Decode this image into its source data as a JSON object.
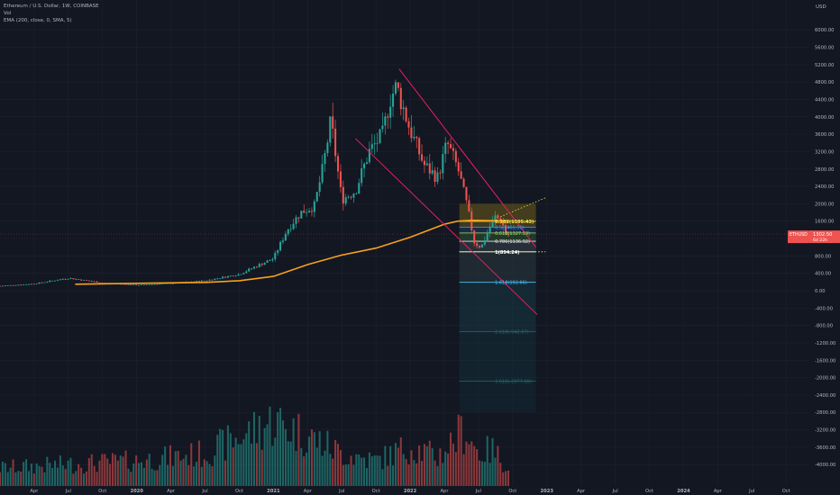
{
  "legend": {
    "title": "Ethereum / U.S. Dollar, 1W, COINBASE",
    "vol": "Vol",
    "ema": "EMA (200, close, 0, SMA, 5)"
  },
  "price_scale": {
    "currency": "USD",
    "ticks": [
      6000,
      5600,
      5200,
      4800,
      4400,
      4000,
      3600,
      3200,
      2800,
      2400,
      2000,
      1600,
      1200,
      800,
      400,
      0,
      -400,
      -800,
      -1200,
      -1600,
      -2000,
      -2400,
      -2800,
      -3200,
      -3600,
      -4000
    ],
    "tick_labels": [
      "6000.00",
      "5600.00",
      "5200.00",
      "4800.00",
      "4400.00",
      "4000.00",
      "3600.00",
      "3200.00",
      "2800.00",
      "2400.00",
      "2000.00",
      "1600.00",
      "1200.00",
      "800.00",
      "400.00",
      "0.00",
      "-400.00",
      "-800.00",
      "-1200.00",
      "-1600.00",
      "-2000.00",
      "-2400.00",
      "-2800.00",
      "-3200.00",
      "-3600.00",
      "-4000.00"
    ],
    "last_price_badge": {
      "symbol": "ETHUSD",
      "price": "1302.50",
      "countdown": "6d 22h"
    }
  },
  "time_axis": {
    "labels": [
      "Apr",
      "Jul",
      "Oct",
      "2020",
      "Apr",
      "Jul",
      "Oct",
      "2021",
      "Apr",
      "Jul",
      "Oct",
      "2022",
      "Apr",
      "Jul",
      "Oct",
      "2023",
      "Apr",
      "Jul",
      "Oct",
      "2024",
      "Apr",
      "Jul",
      "Oct"
    ],
    "label_dates": [
      2019.25,
      2019.5,
      2019.75,
      2020.0,
      2020.25,
      2020.5,
      2020.75,
      2021.0,
      2021.25,
      2021.5,
      2021.75,
      2022.0,
      2022.25,
      2022.5,
      2022.75,
      2023.0,
      2023.25,
      2023.5,
      2023.75,
      2024.0,
      2024.25,
      2024.5,
      2024.75
    ]
  },
  "fib_levels": [
    {
      "ratio": 0.382,
      "label": "0.382(1595.43)",
      "price": 1595.43,
      "color": "#f5e04a"
    },
    {
      "ratio": 0.5,
      "label": "0.5(1461.50)",
      "price": 1461.5,
      "color": "#3aa3ff"
    },
    {
      "ratio": 0.618,
      "label": "0.618(1327.19)",
      "price": 1327.19,
      "color": "#9ee35a"
    },
    {
      "ratio": 0.786,
      "label": "0.786(1136.92)",
      "price": 1136.92,
      "color": "#e8e8e8"
    },
    {
      "ratio": 1,
      "label": "1(894.24)",
      "price": 894.24,
      "color": "#ffffff"
    },
    {
      "ratio": 1.618,
      "label": "1.618(192.66)",
      "price": 192.66,
      "color": "#4fc3f7"
    },
    {
      "ratio": 2.618,
      "label": "2.618(-942.07)",
      "price": -942.07,
      "color": "#1f6f6a"
    },
    {
      "ratio": 3.618,
      "label": "3.618(-2077.80)",
      "price": -2077.8,
      "color": "#1f6f6a"
    }
  ],
  "colors": {
    "background": "#131722",
    "up": "#26a69a",
    "down": "#ef5350",
    "ema": "#f7a21b",
    "channel": "#e91e63",
    "grid": "#1e2230",
    "axis_text": "#b2b5be",
    "badge": "#ef5350"
  },
  "chart_data": {
    "type": "candlestick",
    "symbol": "ETHUSD",
    "interval": "1W",
    "exchange": "COINBASE",
    "ylim": [
      -4200,
      6400
    ],
    "xlim": [
      2019.0,
      2024.92
    ],
    "grid": true,
    "series": [
      {
        "name": "Price (approx. close)",
        "x": [
          2019.0,
          2019.25,
          2019.5,
          2019.75,
          2020.0,
          2020.25,
          2020.5,
          2020.75,
          2020.9,
          2021.0,
          2021.1,
          2021.2,
          2021.3,
          2021.36,
          2021.42,
          2021.5,
          2021.6,
          2021.7,
          2021.8,
          2021.85,
          2021.9,
          2022.0,
          2022.1,
          2022.2,
          2022.27,
          2022.35,
          2022.42,
          2022.47,
          2022.52,
          2022.56,
          2022.62,
          2022.67,
          2022.7
        ],
        "y": [
          110,
          160,
          290,
          180,
          130,
          170,
          230,
          380,
          600,
          740,
          1400,
          1800,
          1950,
          2800,
          3900,
          2100,
          2300,
          3200,
          3600,
          4400,
          4700,
          3700,
          2900,
          2600,
          3400,
          2800,
          1900,
          1100,
          1000,
          1300,
          1700,
          1600,
          1300
        ]
      },
      {
        "name": "EMA (200, close, 0, SMA, 5)",
        "x": [
          2019.55,
          2020.0,
          2020.5,
          2020.75,
          2021.0,
          2021.25,
          2021.5,
          2021.75,
          2022.0,
          2022.25,
          2022.35,
          2022.45,
          2022.6,
          2022.72
        ],
        "y": [
          150,
          170,
          190,
          230,
          330,
          600,
          820,
          980,
          1230,
          1530,
          1600,
          1620,
          1610,
          1600
        ]
      },
      {
        "name": "Volume",
        "x": [
          2019.0,
          2019.5,
          2020.0,
          2020.5,
          2021.0,
          2021.25,
          2021.5,
          2021.75,
          2022.0,
          2022.2,
          2022.4,
          2022.5,
          2022.6,
          2022.7
        ],
        "y": [
          0.25,
          0.3,
          0.35,
          0.45,
          0.9,
          0.7,
          0.45,
          0.35,
          0.55,
          0.4,
          0.8,
          0.45,
          0.5,
          0.3
        ]
      }
    ],
    "channel_lines": [
      {
        "from": [
          2021.92,
          5100
        ],
        "to": [
          2022.92,
          1000
        ]
      },
      {
        "from": [
          2021.6,
          3500
        ],
        "to": [
          2022.93,
          -550
        ]
      }
    ]
  }
}
